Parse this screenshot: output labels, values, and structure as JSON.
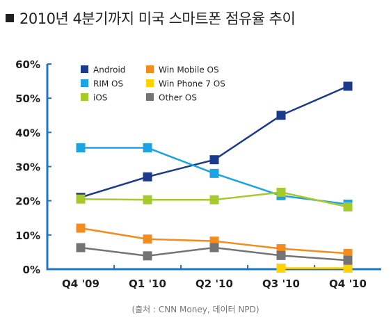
{
  "title": "2010년 4분기까지 미국 스마트폰 점유율 추이",
  "source": "(출처 : CNN Money, 데이터 NPD)",
  "chart_data": {
    "type": "line",
    "categories": [
      "Q4 '09",
      "Q1 '10",
      "Q2 '10",
      "Q3 '10",
      "Q4 '10"
    ],
    "ylim": [
      0,
      60
    ],
    "yticks": [
      0,
      10,
      20,
      30,
      40,
      50,
      60
    ],
    "ytick_labels": [
      "0%",
      "10%",
      "20%",
      "30%",
      "40%",
      "50%",
      "60%"
    ],
    "grid": false,
    "legend_position": "top-left",
    "series": [
      {
        "name": "Android",
        "color": "#1b3a8c",
        "values": [
          21,
          27,
          32,
          45,
          53.5
        ]
      },
      {
        "name": "RIM OS",
        "color": "#1ba3e3",
        "values": [
          35.5,
          35.5,
          28,
          21.5,
          19
        ]
      },
      {
        "name": "iOS",
        "color": "#a6c92b",
        "values": [
          20.5,
          20.3,
          20.3,
          22.5,
          18.2
        ]
      },
      {
        "name": "Win Mobile OS",
        "color": "#f28c1e",
        "values": [
          12,
          8.8,
          8.2,
          6,
          4.6
        ]
      },
      {
        "name": "Win Phone 7 OS",
        "color": "#ffd200",
        "values": [
          null,
          null,
          null,
          0.3,
          0.3
        ]
      },
      {
        "name": "Other OS",
        "color": "#747474",
        "values": [
          6.3,
          3.9,
          6.3,
          4,
          2.6
        ]
      }
    ]
  }
}
